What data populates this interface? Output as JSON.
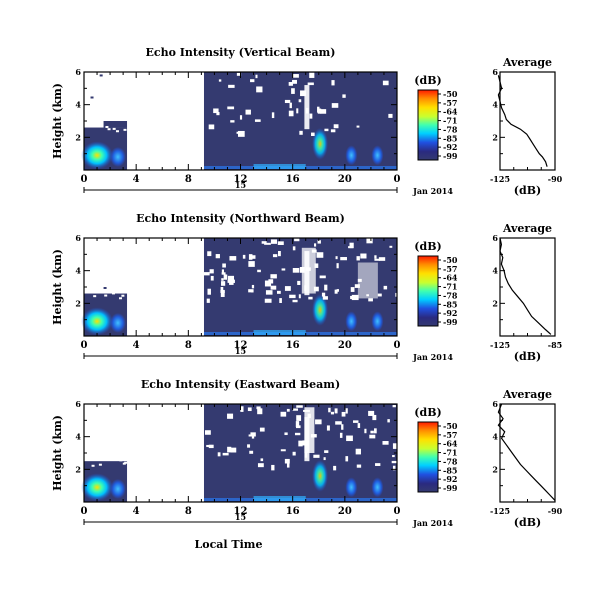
{
  "chart_data": {
    "type": "heatmap",
    "date_label": "Jan 2014",
    "day_label": "15",
    "xlabel": "Local Time",
    "x_ticks": [
      "0",
      "4",
      "8",
      "12",
      "16",
      "20",
      "0"
    ],
    "ylabel": "Height (km)",
    "y_ticks": [
      "2",
      "4",
      "6"
    ],
    "ylim": [
      0,
      6
    ],
    "colorbar": {
      "label": "(dB)",
      "ticks": [
        "-50",
        "-57",
        "-64",
        "-71",
        "-78",
        "-85",
        "-92",
        "-99"
      ],
      "colors": [
        "#ff1a00",
        "#ff8c00",
        "#ffe000",
        "#c8ff30",
        "#40ffb0",
        "#00d0ff",
        "#2050e0",
        "#2a2a80",
        "#343a70"
      ]
    },
    "panels": [
      {
        "title": "Echo Intensity (Vertical Beam)",
        "avg_title": "Average",
        "avg_xlabel": "(dB)",
        "avg_xticks": [
          "-125",
          "-90"
        ],
        "avg_profile": [
          [
            -95,
            0.2
          ],
          [
            -96,
            0.5
          ],
          [
            -98,
            0.8
          ],
          [
            -100,
            1.0
          ],
          [
            -102,
            1.3
          ],
          [
            -104,
            1.6
          ],
          [
            -106,
            1.9
          ],
          [
            -108,
            2.2
          ],
          [
            -112,
            2.5
          ],
          [
            -118,
            2.8
          ],
          [
            -121,
            3.1
          ],
          [
            -122,
            3.4
          ],
          [
            -124,
            3.8
          ],
          [
            -125,
            4.2
          ],
          [
            -126,
            4.6
          ],
          [
            -124,
            5.0
          ],
          [
            -125,
            5.4
          ],
          [
            -126,
            5.8
          ]
        ]
      },
      {
        "title": "Echo Intensity (Northward Beam)",
        "avg_title": "Average",
        "avg_xlabel": "(dB)",
        "avg_xticks": [
          "-125",
          "-85"
        ],
        "avg_profile": [
          [
            -88,
            0.1
          ],
          [
            -92,
            0.4
          ],
          [
            -97,
            0.8
          ],
          [
            -102,
            1.2
          ],
          [
            -105,
            1.6
          ],
          [
            -108,
            2.0
          ],
          [
            -112,
            2.4
          ],
          [
            -116,
            2.8
          ],
          [
            -119,
            3.2
          ],
          [
            -121,
            3.6
          ],
          [
            -122,
            4.0
          ],
          [
            -124,
            4.4
          ],
          [
            -123,
            4.8
          ],
          [
            -125,
            5.2
          ],
          [
            -124,
            5.6
          ],
          [
            -125,
            6.0
          ]
        ]
      },
      {
        "title": "Echo Intensity (Eastward Beam)",
        "avg_title": "Average",
        "avg_xlabel": "(dB)",
        "avg_xticks": [
          "-125",
          "-90"
        ],
        "avg_profile": [
          [
            -90,
            0.1
          ],
          [
            -93,
            0.4
          ],
          [
            -96,
            0.7
          ],
          [
            -99,
            1.0
          ],
          [
            -102,
            1.3
          ],
          [
            -105,
            1.6
          ],
          [
            -108,
            1.9
          ],
          [
            -112,
            2.3
          ],
          [
            -115,
            2.7
          ],
          [
            -118,
            3.1
          ],
          [
            -121,
            3.5
          ],
          [
            -124,
            3.9
          ],
          [
            -122,
            4.3
          ],
          [
            -126,
            4.7
          ],
          [
            -123,
            5.1
          ],
          [
            -126,
            5.5
          ],
          [
            -124,
            6.0
          ]
        ]
      }
    ]
  }
}
